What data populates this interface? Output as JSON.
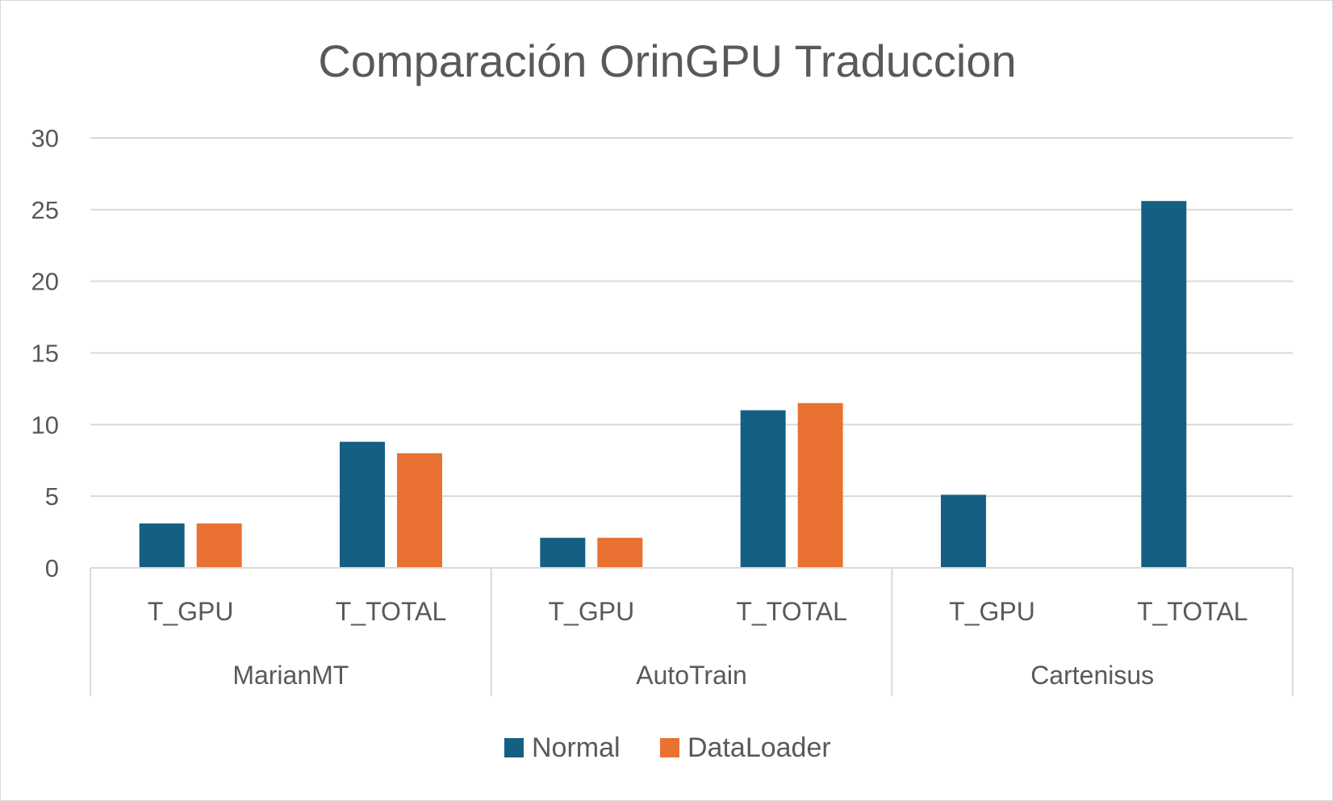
{
  "chart_data": {
    "type": "bar",
    "title": "Comparación OrinGPU Traduccion",
    "xlabel": "",
    "ylabel": "",
    "ylim": [
      0,
      30
    ],
    "yticks": [
      0,
      5,
      10,
      15,
      20,
      25,
      30
    ],
    "grid": true,
    "legend_position": "bottom",
    "groups": [
      "MarianMT",
      "AutoTrain",
      "Cartenisus"
    ],
    "categories": [
      "T_GPU",
      "T_TOTAL",
      "T_GPU",
      "T_TOTAL",
      "T_GPU",
      "T_TOTAL"
    ],
    "series": [
      {
        "name": "Normal",
        "color": "#156082",
        "values": [
          3.1,
          8.8,
          2.1,
          11.0,
          5.1,
          25.6
        ]
      },
      {
        "name": "DataLoader",
        "color": "#E97132",
        "values": [
          3.1,
          8.0,
          2.1,
          11.5,
          null,
          null
        ]
      }
    ]
  }
}
